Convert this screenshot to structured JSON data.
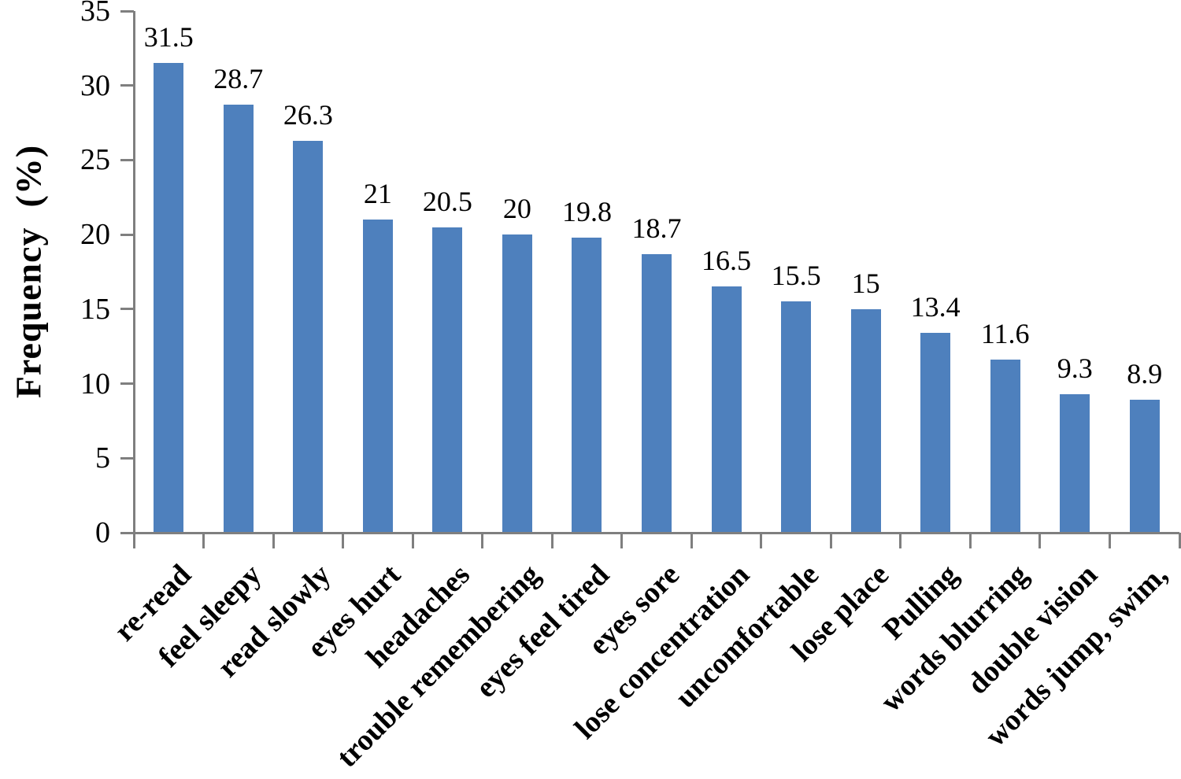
{
  "chart_data": {
    "type": "bar",
    "title": "",
    "xlabel": "",
    "ylabel": "Frequency  (%)",
    "categories": [
      "re-read",
      "feel sleepy",
      "read slowly",
      "eyes hurt",
      "headaches",
      "trouble remembering",
      "eyes feel tired",
      "eyes sore",
      "lose concentration",
      "uncomfortable",
      "lose place",
      "Pulling",
      "words blurring",
      "double vision",
      "words jump, swim,"
    ],
    "values": [
      31.5,
      28.7,
      26.3,
      21,
      20.5,
      20,
      19.8,
      18.7,
      16.5,
      15.5,
      15,
      13.4,
      11.6,
      9.3,
      8.9
    ],
    "data_labels": [
      "31.5",
      "28.7",
      "26.3",
      "21",
      "20.5",
      "20",
      "19.8",
      "18.7",
      "16.5",
      "15.5",
      "15",
      "13.4",
      "11.6",
      "9.3",
      "8.9"
    ],
    "ylim": [
      0,
      35
    ],
    "yticks": [
      0,
      5,
      10,
      15,
      20,
      25,
      30,
      35
    ],
    "grid": false,
    "legend": null,
    "category_label_rotation_deg": 45,
    "bar_color": "#4e80bd",
    "axis_color": "#7f7f7f",
    "text_color": "#000000"
  }
}
